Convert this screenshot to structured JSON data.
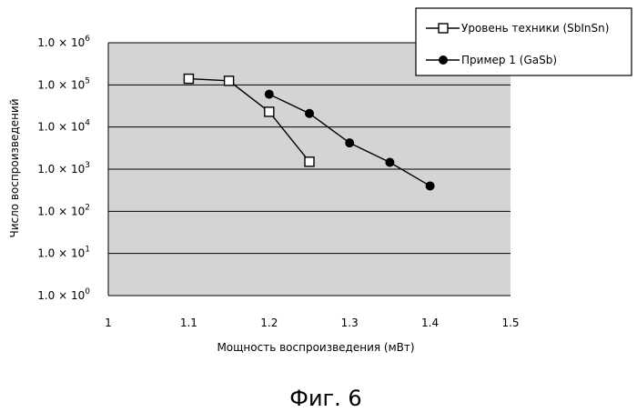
{
  "chart_data": {
    "type": "line",
    "ylabel": "Число воспроизведений",
    "xlabel": "Мощность воспроизведения (мВт)",
    "x_ticks": [
      "1",
      "1.1",
      "1.2",
      "1.3",
      "1.4",
      "1.5"
    ],
    "y_tick_mantissa": "1.0 × 10",
    "y_tick_exponents": [
      "0",
      "1",
      "2",
      "3",
      "4",
      "5",
      "6"
    ],
    "xlim": [
      1.0,
      1.5
    ],
    "ylim": [
      1,
      1000000
    ],
    "y_scale": "log",
    "grid": "horizontal",
    "legend_position": "top-right",
    "series": [
      {
        "name": "Уровень техники (SbInSn)",
        "marker": "open-square",
        "color": "#000000",
        "x": [
          1.1,
          1.15,
          1.2,
          1.25
        ],
        "y": [
          140000,
          125000,
          23000,
          1500
        ]
      },
      {
        "name": "Пример 1 (GaSb)",
        "marker": "filled-circle",
        "color": "#000000",
        "x": [
          1.2,
          1.25,
          1.3,
          1.35,
          1.4
        ],
        "y": [
          60000,
          21000,
          4200,
          1450,
          400
        ]
      }
    ]
  },
  "caption": "Фиг. 6"
}
